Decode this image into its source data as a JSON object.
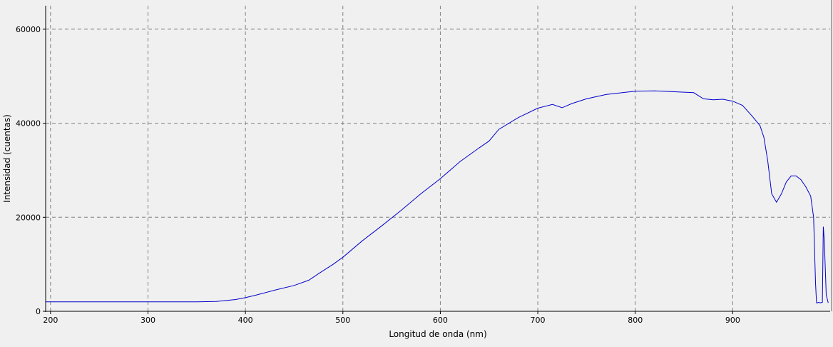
{
  "chart_data": {
    "type": "line",
    "title": "",
    "xlabel": "Longitud de onda (nm)",
    "ylabel": "Intensidad (cuentas)",
    "xlim": [
      195,
      1000
    ],
    "ylim": [
      0,
      65000
    ],
    "grid": true,
    "legend": "none",
    "x_ticks": [
      200,
      300,
      400,
      500,
      600,
      700,
      800,
      900
    ],
    "y_ticks": [
      0,
      20000,
      40000,
      60000
    ],
    "x_tick_labels": [
      "200",
      "300",
      "400",
      "500",
      "600",
      "700",
      "800",
      "900"
    ],
    "y_tick_labels": [
      "0",
      "20000",
      "40000",
      "60000"
    ],
    "series": [
      {
        "color": "#0000cc",
        "x": [
          195,
          250,
          300,
          350,
          370,
          390,
          400,
          410,
          430,
          450,
          465,
          475,
          490,
          500,
          520,
          540,
          560,
          580,
          600,
          620,
          640,
          650,
          660,
          680,
          700,
          715,
          725,
          735,
          750,
          770,
          790,
          800,
          820,
          840,
          860,
          870,
          880,
          890,
          900,
          910,
          920,
          928,
          932,
          936,
          940,
          945,
          950,
          955,
          960,
          965,
          970,
          975,
          980,
          983,
          985,
          986,
          987,
          988,
          990,
          992,
          993,
          994,
          996,
          998
        ],
        "y": [
          2000,
          2000,
          2000,
          2000,
          2100,
          2500,
          2900,
          3400,
          4500,
          5500,
          6600,
          8000,
          10000,
          11500,
          15000,
          18200,
          21500,
          25000,
          28200,
          31800,
          34800,
          36200,
          38700,
          41200,
          43200,
          44000,
          43300,
          44200,
          45200,
          46100,
          46600,
          46800,
          46900,
          46700,
          46500,
          45200,
          45000,
          45100,
          44700,
          43800,
          41500,
          39500,
          37000,
          32000,
          25000,
          23200,
          25000,
          27500,
          28800,
          28800,
          28000,
          26500,
          24500,
          20000,
          6000,
          1800,
          1800,
          1900,
          1800,
          1900,
          18000,
          15000,
          3500,
          1800
        ]
      }
    ]
  }
}
